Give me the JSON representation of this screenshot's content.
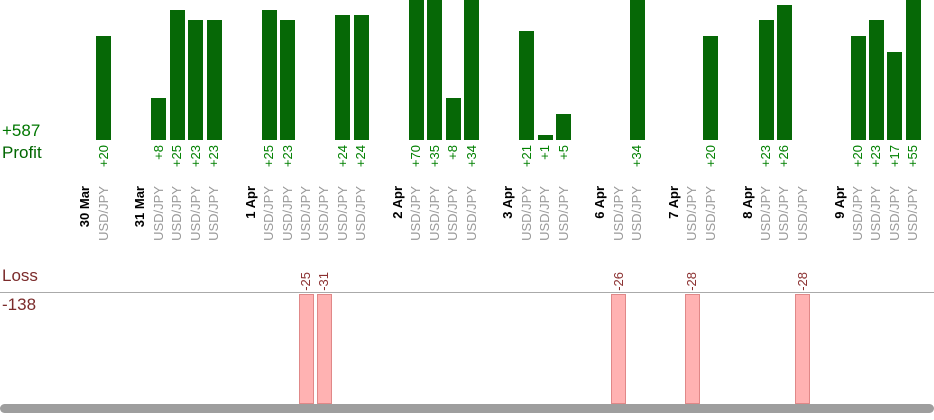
{
  "chart": {
    "profit_total_label": "+587",
    "profit_axis_label": "Profit",
    "loss_axis_label": "Loss",
    "loss_total_label": "-138"
  },
  "chart_data": {
    "type": "bar",
    "title": "",
    "symbol": "USD/JPY",
    "ylabel_top": "Profit",
    "ylabel_bottom": "Loss",
    "profit_total": 587,
    "loss_total": -138,
    "days": [
      {
        "date": "30 Mar",
        "trades": [
          20
        ]
      },
      {
        "date": "31 Mar",
        "trades": [
          8,
          25,
          23,
          23
        ]
      },
      {
        "date": "1 Apr",
        "trades": [
          25,
          23,
          -25,
          -31,
          24,
          24
        ]
      },
      {
        "date": "2 Apr",
        "trades": [
          70,
          35,
          8,
          34
        ]
      },
      {
        "date": "3 Apr",
        "trades": [
          21,
          1,
          5
        ]
      },
      {
        "date": "6 Apr",
        "trades": [
          -26,
          34
        ]
      },
      {
        "date": "7 Apr",
        "trades": [
          -28,
          20
        ]
      },
      {
        "date": "8 Apr",
        "trades": [
          23,
          26,
          -28
        ]
      },
      {
        "date": "9 Apr",
        "trades": [
          20,
          23,
          17,
          55
        ]
      }
    ],
    "layout": {
      "bars_clipped_at_top": true,
      "loss_bars_clipped_at_bottom": true,
      "grid": false,
      "legend": false
    },
    "colors": {
      "profit_bar": "#066806",
      "profit_value_text": "#008000",
      "profit_axis_text": "#006600",
      "profit_total_text": "#007700",
      "loss_bar_fill": "#ffb2b2",
      "loss_bar_border": "#e08888",
      "loss_value_text": "#8b3030",
      "loss_axis_text": "#7b2b2b",
      "date_text": "#000000",
      "symbol_text": "#999999",
      "baseline": "#aaaaaa",
      "scrollbar": "#9e9e9e"
    }
  }
}
